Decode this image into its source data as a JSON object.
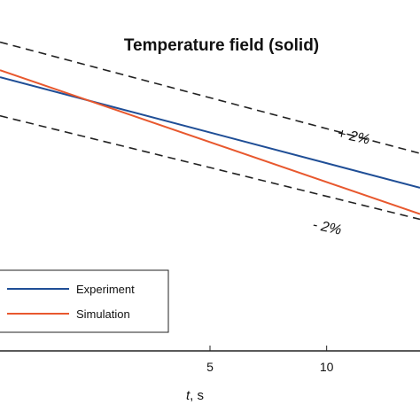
{
  "chart_data": {
    "type": "line",
    "title": "Temperature field (solid)",
    "xlabel_var": "t",
    "xlabel_unit": ", s",
    "xlim": [
      -4,
      14
    ],
    "ylim": [
      0,
      1
    ],
    "xticks": [
      5,
      10
    ],
    "xtick_labels": [
      "5",
      "10"
    ],
    "grid": false,
    "legend_position": "lower-left",
    "series": [
      {
        "name": "Experiment",
        "color": "#1f4e96",
        "style": "solid",
        "x": [
          -4,
          14
        ],
        "y": [
          0.78,
          0.465
        ]
      },
      {
        "name": "Simulation",
        "color": "#e8582e",
        "style": "solid",
        "x": [
          -4,
          14
        ],
        "y": [
          0.8,
          0.39
        ]
      },
      {
        "name": "",
        "color": "#222222",
        "style": "dashed",
        "x": [
          -4,
          14
        ],
        "y": [
          0.88,
          0.563
        ]
      },
      {
        "name": "",
        "color": "#222222",
        "style": "dashed",
        "x": [
          -4,
          14
        ],
        "y": [
          0.67,
          0.375
        ]
      }
    ],
    "annotations": [
      {
        "text": "+ 2%",
        "x": 11.8,
        "y": 0.69
      },
      {
        "text": "- 2%",
        "x": 11.0,
        "y": 0.36
      }
    ]
  }
}
